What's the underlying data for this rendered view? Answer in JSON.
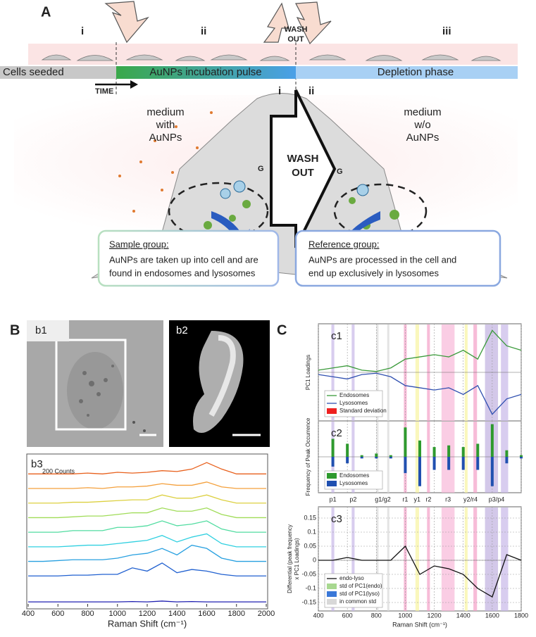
{
  "panel_a": {
    "label": "A",
    "stages": [
      "i",
      "ii",
      "iii"
    ],
    "timeline": [
      "Cells seeded",
      "AuNPs incubation pulse",
      "Depletion phase"
    ],
    "time": "TIME",
    "wash_out_top": [
      "WASH",
      "OUT"
    ],
    "sub_stages": [
      "i",
      "ii"
    ],
    "medium_with": [
      "medium",
      "with",
      "AuNPs"
    ],
    "wash_out_center": [
      "WASH",
      "OUT"
    ],
    "medium_without": [
      "medium",
      "w/o",
      "AuNPs"
    ],
    "golgi": [
      "G",
      "G"
    ],
    "sample_group": {
      "title": "Sample group:",
      "text": [
        "AuNPs are taken up into cell and are",
        "found in endosomes and lysosomes"
      ]
    },
    "reference_group": {
      "title": "Reference group:",
      "text": [
        "AuNPs are processed in the cell and",
        "end up exclusively in lysosomes"
      ]
    }
  },
  "panel_b": {
    "label": "B",
    "b1": "b1",
    "b2": "b2"
  },
  "panel_c": {
    "label": "C"
  },
  "chart_data": [
    {
      "type": "line",
      "label": "b3",
      "annotation": "200 Counts",
      "xlabel": "Raman Shift (cm⁻¹)",
      "xlim": [
        400,
        2000
      ],
      "xticks": [
        400,
        600,
        800,
        1000,
        1200,
        1400,
        1600,
        1800,
        2000
      ],
      "ylim": [
        0,
        9.3
      ],
      "x": [
        400,
        500,
        600,
        700,
        800,
        900,
        1000,
        1100,
        1200,
        1300,
        1400,
        1500,
        1600,
        1700,
        1800,
        1900,
        2000
      ],
      "series": [
        {
          "color": "#e8601c",
          "values": [
            8.2,
            8.2,
            8.2,
            8.2,
            8.25,
            8.2,
            8.3,
            8.25,
            8.3,
            8.4,
            8.35,
            8.5,
            8.9,
            8.5,
            8.2,
            8.2,
            8.2
          ]
        },
        {
          "color": "#f4a03c",
          "values": [
            7.3,
            7.3,
            7.3,
            7.3,
            7.35,
            7.3,
            7.4,
            7.4,
            7.45,
            7.6,
            7.5,
            7.5,
            7.7,
            7.4,
            7.3,
            7.3,
            7.3
          ]
        },
        {
          "color": "#dcd040",
          "values": [
            6.4,
            6.4,
            6.4,
            6.45,
            6.45,
            6.5,
            6.55,
            6.6,
            6.6,
            6.9,
            6.7,
            6.7,
            6.9,
            6.6,
            6.4,
            6.4,
            6.4
          ]
        },
        {
          "color": "#a0dc58",
          "values": [
            5.5,
            5.5,
            5.5,
            5.55,
            5.6,
            5.6,
            5.7,
            5.8,
            5.8,
            6.1,
            5.9,
            5.9,
            6.1,
            5.7,
            5.5,
            5.5,
            5.5
          ]
        },
        {
          "color": "#50dca0",
          "values": [
            4.6,
            4.6,
            4.6,
            4.7,
            4.7,
            4.7,
            4.9,
            4.9,
            5.0,
            5.3,
            5.0,
            5.1,
            5.3,
            4.8,
            4.6,
            4.6,
            4.6
          ]
        },
        {
          "color": "#30d0e0",
          "values": [
            3.7,
            3.7,
            3.7,
            3.75,
            3.8,
            3.8,
            3.9,
            4.0,
            4.1,
            4.4,
            4.0,
            4.3,
            4.5,
            3.9,
            3.7,
            3.7,
            3.7
          ]
        },
        {
          "color": "#28a0e0",
          "values": [
            2.8,
            2.8,
            2.85,
            2.9,
            2.9,
            2.9,
            3.0,
            3.2,
            3.3,
            3.6,
            3.2,
            3.8,
            3.6,
            3.0,
            2.8,
            2.8,
            2.8
          ]
        },
        {
          "color": "#2060d0",
          "values": [
            1.9,
            1.9,
            1.9,
            1.95,
            1.95,
            2.0,
            2.0,
            2.4,
            2.2,
            2.7,
            2.1,
            2.3,
            2.2,
            2.0,
            1.9,
            1.9,
            1.9
          ]
        },
        {
          "color": "#2020b0",
          "values": [
            0.3,
            0.3,
            0.3,
            0.3,
            0.3,
            0.3,
            0.3,
            0.32,
            0.3,
            0.35,
            0.3,
            0.32,
            0.3,
            0.3,
            0.3,
            0.3,
            0.3
          ]
        }
      ]
    },
    {
      "type": "line",
      "label": "c1",
      "ylabel": "PC1 Loadings",
      "xlim": [
        400,
        1800
      ],
      "ylim": [
        -1.1,
        1.1
      ],
      "grid": true,
      "bands": [
        {
          "range": [
            490,
            510
          ],
          "color": "#c8b8e8"
        },
        {
          "range": [
            630,
            650
          ],
          "color": "#c8b8e8"
        },
        {
          "range": [
            800,
            815
          ],
          "color": "#d8d8d8"
        },
        {
          "range": [
            875,
            890
          ],
          "color": "#d8d8d8"
        },
        {
          "range": [
            990,
            1010
          ],
          "color": "#f4a0c8"
        },
        {
          "range": [
            1070,
            1095
          ],
          "color": "#f8f4a0"
        },
        {
          "range": [
            1150,
            1170
          ],
          "color": "#f4a0c8"
        },
        {
          "range": [
            1250,
            1340
          ],
          "color": "#f8b8d8"
        },
        {
          "range": [
            1410,
            1430
          ],
          "color": "#f8f4a0"
        },
        {
          "range": [
            1470,
            1495
          ],
          "color": "#f4a0c8"
        },
        {
          "range": [
            1550,
            1640
          ],
          "color": "#c0b0e0"
        },
        {
          "range": [
            1660,
            1710
          ],
          "color": "#c8b8e8"
        }
      ],
      "x": [
        400,
        500,
        600,
        700,
        800,
        900,
        1000,
        1100,
        1200,
        1300,
        1400,
        1500,
        1600,
        1700,
        1800
      ],
      "series": [
        {
          "name": "Endosomes",
          "color": "#3a9a3a",
          "values": [
            0.05,
            0.1,
            0.15,
            0.05,
            0.02,
            0.1,
            0.3,
            0.35,
            0.4,
            0.35,
            0.5,
            0.3,
            0.95,
            0.6,
            0.5
          ]
        },
        {
          "name": "Lysosomes",
          "color": "#3050b0",
          "values": [
            -0.05,
            -0.1,
            -0.15,
            -0.05,
            -0.02,
            -0.1,
            -0.3,
            -0.35,
            -0.4,
            -0.35,
            -0.5,
            -0.3,
            -0.95,
            -0.6,
            -0.5
          ]
        }
      ],
      "std_legend": {
        "name": "Standard deviation",
        "color": "#ee2020"
      }
    },
    {
      "type": "bar",
      "label": "c2",
      "ylabel": "Frequency of Peak Occurrence",
      "xlim": [
        400,
        1800
      ],
      "ylim": [
        -1.1,
        1.1
      ],
      "grid": true,
      "x": [
        400,
        500,
        600,
        700,
        800,
        900,
        1000,
        1100,
        1200,
        1300,
        1400,
        1500,
        1600,
        1700,
        1800
      ],
      "series": [
        {
          "name": "Endosomes",
          "color": "#2e9a2e",
          "values": [
            0,
            0.55,
            0.4,
            0.05,
            0.1,
            0.05,
            0.9,
            0.5,
            0.3,
            0.35,
            0.3,
            0.4,
            1.0,
            0.2,
            0.05
          ]
        },
        {
          "name": "Lysosomes",
          "color": "#2050b0",
          "values": [
            0,
            -0.3,
            -0.2,
            -0.05,
            -0.05,
            -0.05,
            -0.5,
            -0.9,
            -0.4,
            -0.4,
            -0.4,
            -0.4,
            -0.9,
            -0.2,
            -0.05
          ]
        }
      ],
      "band_labels": [
        {
          "label": "p1",
          "x": 500
        },
        {
          "label": "p2",
          "x": 640
        },
        {
          "label": "g1/g2",
          "x": 845
        },
        {
          "label": "r1",
          "x": 1000
        },
        {
          "label": "y1",
          "x": 1082
        },
        {
          "label": "r2",
          "x": 1160
        },
        {
          "label": "r3",
          "x": 1295
        },
        {
          "label": "y2/r4",
          "x": 1450
        },
        {
          "label": "p3/p4",
          "x": 1630
        }
      ]
    },
    {
      "type": "line",
      "label": "c3",
      "ylabel": [
        "Differential (peak frequency",
        "x PC1 Loadings)"
      ],
      "xlabel": "Raman Shift (cm⁻¹)",
      "xlim": [
        400,
        1800
      ],
      "xticks": [
        400,
        600,
        800,
        1000,
        1200,
        1400,
        1600,
        1800
      ],
      "ylim": [
        -0.18,
        0.19
      ],
      "yticks": [
        -0.15,
        -0.1,
        -0.05,
        0,
        0.05,
        0.1,
        0.15
      ],
      "grid": true,
      "x": [
        400,
        500,
        600,
        700,
        800,
        900,
        1000,
        1100,
        1200,
        1300,
        1400,
        1500,
        1600,
        1700,
        1800
      ],
      "series": [
        {
          "name": "endo-lyso",
          "color": "#111111",
          "values": [
            0,
            0,
            0.01,
            0,
            0,
            0,
            0.05,
            -0.05,
            -0.02,
            -0.03,
            -0.05,
            -0.1,
            -0.13,
            0.02,
            0
          ]
        }
      ],
      "legend": [
        {
          "name": "std of PC1(endo)",
          "color": "#a8d890"
        },
        {
          "name": "std of PC1(lyso)",
          "color": "#3a78d8"
        },
        {
          "name": "in common std",
          "color": "#d8d8d8"
        }
      ]
    }
  ]
}
